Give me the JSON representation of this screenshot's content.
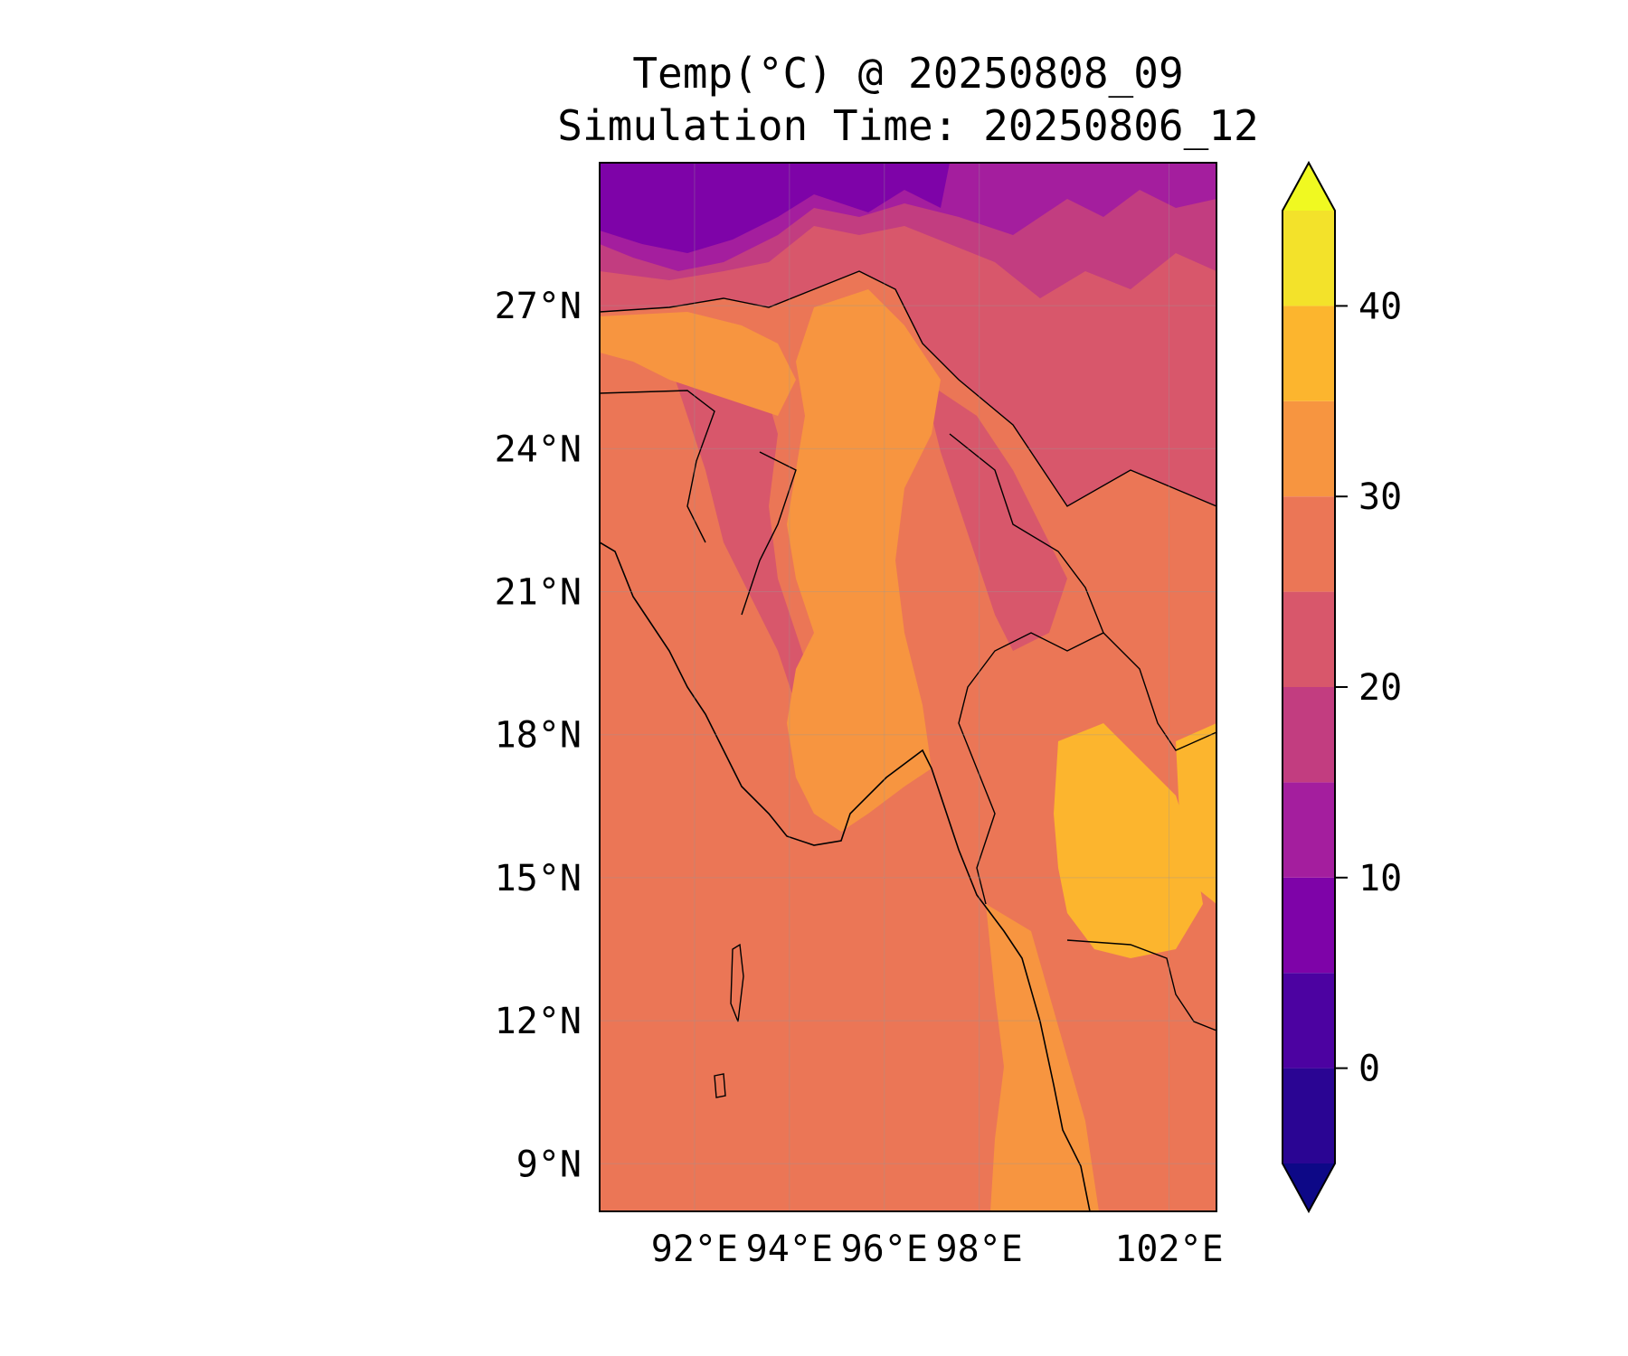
{
  "title": {
    "line1": "Temp(°C) @ 20250808_09",
    "line2": "Simulation Time: 20250806_12"
  },
  "map": {
    "region": "Myanmar",
    "lon_range": [
      90,
      103
    ],
    "lat_range": [
      8,
      30
    ],
    "lat_ticks": [
      {
        "value": 27,
        "label": "27°N"
      },
      {
        "value": 24,
        "label": "24°N"
      },
      {
        "value": 21,
        "label": "21°N"
      },
      {
        "value": 18,
        "label": "18°N"
      },
      {
        "value": 15,
        "label": "15°N"
      },
      {
        "value": 12,
        "label": "12°N"
      },
      {
        "value": 9,
        "label": "9°N"
      }
    ],
    "lon_ticks": [
      {
        "value": 92,
        "label": "92°E"
      },
      {
        "value": 94,
        "label": "94°E"
      },
      {
        "value": 96,
        "label": "96°E"
      },
      {
        "value": 98,
        "label": "98°E"
      },
      {
        "value": 102,
        "label": "102°E"
      }
    ],
    "grid": true
  },
  "colorbar": {
    "vmin": -5,
    "vmax": 45,
    "extend": "both",
    "ticks": [
      {
        "value": 0,
        "label": "0"
      },
      {
        "value": 10,
        "label": "10"
      },
      {
        "value": 20,
        "label": "20"
      },
      {
        "value": 30,
        "label": "30"
      },
      {
        "value": 40,
        "label": "40"
      }
    ],
    "levels": [
      {
        "from": -5,
        "to": 0,
        "color": "#2a0593"
      },
      {
        "from": 0,
        "to": 5,
        "color": "#4c02a1"
      },
      {
        "from": 5,
        "to": 10,
        "color": "#7e03a8"
      },
      {
        "from": 10,
        "to": 15,
        "color": "#a41e9e"
      },
      {
        "from": 15,
        "to": 20,
        "color": "#c23d80"
      },
      {
        "from": 20,
        "to": 25,
        "color": "#d8576b"
      },
      {
        "from": 25,
        "to": 30,
        "color": "#eb7656"
      },
      {
        "from": 30,
        "to": 35,
        "color": "#f79540"
      },
      {
        "from": 35,
        "to": 40,
        "color": "#fcb52e"
      },
      {
        "from": 40,
        "to": 45,
        "color": "#f3e22a"
      }
    ],
    "under_color": "#0d0887",
    "over_color": "#f0f921"
  },
  "colors": {
    "sea": "#eb7656",
    "lowland": "#f79540",
    "hot": "#fcb52e",
    "hills": "#d8576b",
    "cool": "#c23d80",
    "cold": "#a41e9e",
    "frigid": "#7e03a8",
    "ice": "#4c02a1"
  }
}
